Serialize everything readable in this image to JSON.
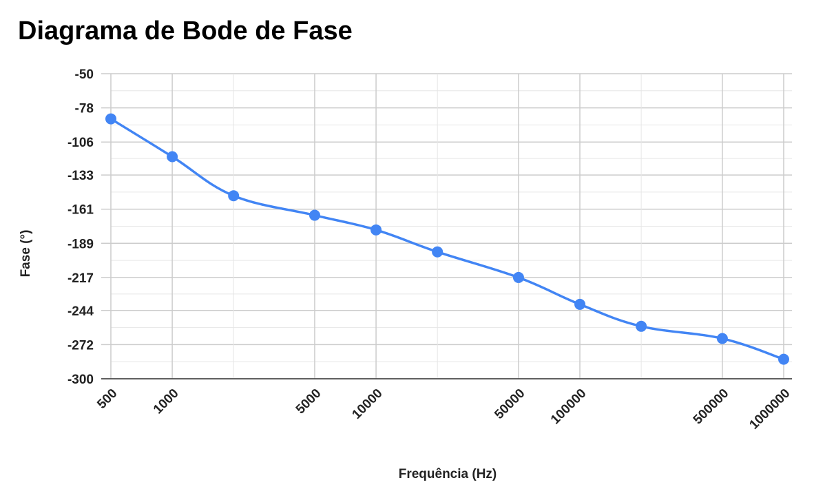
{
  "chart_data": {
    "type": "line",
    "title": "Diagrama de Bode de Fase",
    "xlabel": "Frequência (Hz)",
    "ylabel": "Fase (°)",
    "x_scale": "log",
    "xlim": [
      500,
      1000000
    ],
    "ylim": [
      -300,
      -50
    ],
    "x_ticks": [
      500,
      1000,
      5000,
      10000,
      50000,
      100000,
      500000,
      1000000
    ],
    "x_tick_labels": [
      "500",
      "1000",
      "5000",
      "10000",
      "50000",
      "100000",
      "500000",
      "1000000"
    ],
    "y_ticks": [
      -50,
      -78,
      -106,
      -133,
      -161,
      -189,
      -217,
      -244,
      -272,
      -300
    ],
    "y_tick_labels": [
      "-50",
      "-78",
      "-106",
      "-133",
      "-161",
      "-189",
      "-217",
      "-244",
      "-272",
      "-300"
    ],
    "grid": true,
    "legend": "none",
    "series": [
      {
        "color": "#4285f4",
        "x": [
          500,
          1000,
          2000,
          5000,
          10000,
          20000,
          50000,
          100000,
          200000,
          500000,
          1000000
        ],
        "y": [
          -87,
          -118,
          -150,
          -166,
          -178,
          -196,
          -217,
          -239,
          -257,
          -267,
          -284
        ]
      }
    ]
  }
}
